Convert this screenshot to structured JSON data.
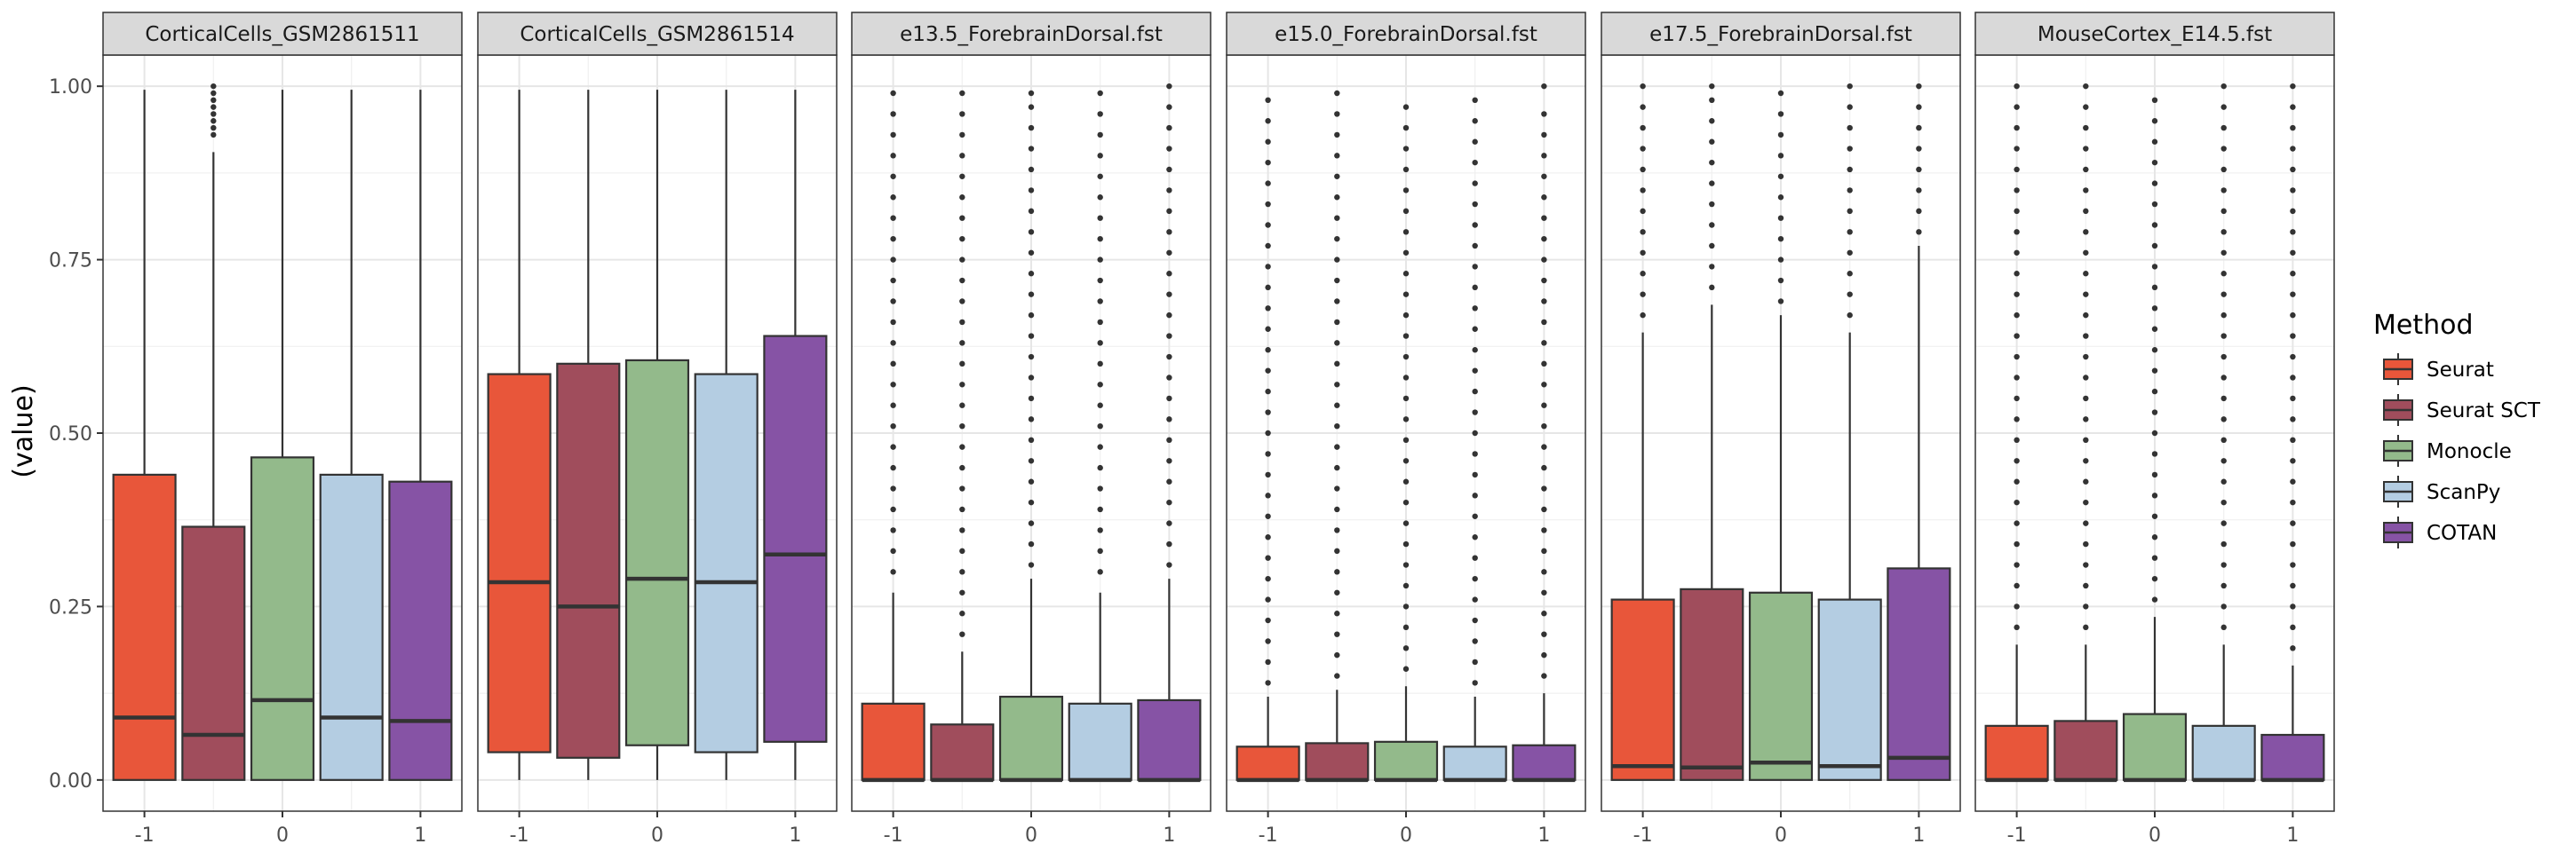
{
  "chart_data": {
    "type": "box",
    "ylabel": "(value)",
    "ylim": [
      -0.045,
      1.045
    ],
    "yticks": [
      0.0,
      0.25,
      0.5,
      0.75,
      1.0
    ],
    "ytick_labels": [
      "0.00",
      "0.25",
      "0.50",
      "0.75",
      "1.00"
    ],
    "x_categories": [
      -1,
      -0.5,
      0,
      0.5,
      1
    ],
    "xticks": [
      -1,
      0,
      1
    ],
    "xtick_labels": [
      "-1",
      "0",
      "1"
    ],
    "grid": true,
    "legend": {
      "title": "Method",
      "position": "right",
      "entries": [
        {
          "name": "Seurat",
          "color": "#E8563A"
        },
        {
          "name": "Seurat SCT",
          "color": "#A04D5C"
        },
        {
          "name": "Monocle",
          "color": "#93BA8B"
        },
        {
          "name": "ScanPy",
          "color": "#B4CDE2"
        },
        {
          "name": "COTAN",
          "color": "#8653A5"
        }
      ]
    },
    "panels": [
      {
        "title": "CorticalCells_GSM2861511",
        "boxes": [
          {
            "method": "Seurat",
            "x": -1,
            "q1": 0.0,
            "median": 0.09,
            "q3": 0.44,
            "whisker_low": 0.0,
            "whisker_high": 0.995,
            "outliers": []
          },
          {
            "method": "Seurat SCT",
            "x": -0.5,
            "q1": 0.0,
            "median": 0.065,
            "q3": 0.365,
            "whisker_low": 0.0,
            "whisker_high": 0.905,
            "outliers": [
              0.93,
              0.94,
              0.95,
              0.96,
              0.97,
              0.98,
              0.99,
              1.0
            ]
          },
          {
            "method": "Monocle",
            "x": 0,
            "q1": 0.0,
            "median": 0.115,
            "q3": 0.465,
            "whisker_low": 0.0,
            "whisker_high": 0.995,
            "outliers": []
          },
          {
            "method": "ScanPy",
            "x": 0.5,
            "q1": 0.0,
            "median": 0.09,
            "q3": 0.44,
            "whisker_low": 0.0,
            "whisker_high": 0.995,
            "outliers": []
          },
          {
            "method": "COTAN",
            "x": 1,
            "q1": 0.0,
            "median": 0.085,
            "q3": 0.43,
            "whisker_low": 0.0,
            "whisker_high": 0.995,
            "outliers": []
          }
        ]
      },
      {
        "title": "CorticalCells_GSM2861514",
        "boxes": [
          {
            "method": "Seurat",
            "x": -1,
            "q1": 0.04,
            "median": 0.285,
            "q3": 0.585,
            "whisker_low": 0.0,
            "whisker_high": 0.995,
            "outliers": []
          },
          {
            "method": "Seurat SCT",
            "x": -0.5,
            "q1": 0.032,
            "median": 0.25,
            "q3": 0.6,
            "whisker_low": 0.0,
            "whisker_high": 0.995,
            "outliers": []
          },
          {
            "method": "Monocle",
            "x": 0,
            "q1": 0.05,
            "median": 0.29,
            "q3": 0.605,
            "whisker_low": 0.0,
            "whisker_high": 0.995,
            "outliers": []
          },
          {
            "method": "ScanPy",
            "x": 0.5,
            "q1": 0.04,
            "median": 0.285,
            "q3": 0.585,
            "whisker_low": 0.0,
            "whisker_high": 0.995,
            "outliers": []
          },
          {
            "method": "COTAN",
            "x": 1,
            "q1": 0.055,
            "median": 0.325,
            "q3": 0.64,
            "whisker_low": 0.0,
            "whisker_high": 0.995,
            "outliers": []
          }
        ]
      },
      {
        "title": "e13.5_ForebrainDorsal.fst",
        "boxes": [
          {
            "method": "Seurat",
            "x": -1,
            "q1": 0.0,
            "median": 0.0,
            "q3": 0.11,
            "whisker_low": 0.0,
            "whisker_high": 0.27,
            "outliers": [
              0.3,
              0.33,
              0.36,
              0.39,
              0.42,
              0.45,
              0.48,
              0.51,
              0.54,
              0.57,
              0.6,
              0.63,
              0.66,
              0.69,
              0.72,
              0.75,
              0.78,
              0.81,
              0.84,
              0.87,
              0.9,
              0.93,
              0.96,
              0.99
            ]
          },
          {
            "method": "Seurat SCT",
            "x": -0.5,
            "q1": 0.0,
            "median": 0.0,
            "q3": 0.08,
            "whisker_low": 0.0,
            "whisker_high": 0.185,
            "outliers": [
              0.21,
              0.24,
              0.27,
              0.3,
              0.33,
              0.36,
              0.39,
              0.42,
              0.45,
              0.48,
              0.51,
              0.54,
              0.57,
              0.6,
              0.63,
              0.66,
              0.69,
              0.72,
              0.75,
              0.78,
              0.81,
              0.84,
              0.87,
              0.9,
              0.93,
              0.96,
              0.99
            ]
          },
          {
            "method": "Monocle",
            "x": 0,
            "q1": 0.0,
            "median": 0.0,
            "q3": 0.12,
            "whisker_low": 0.0,
            "whisker_high": 0.29,
            "outliers": [
              0.31,
              0.34,
              0.37,
              0.4,
              0.43,
              0.46,
              0.49,
              0.52,
              0.55,
              0.58,
              0.61,
              0.64,
              0.67,
              0.7,
              0.73,
              0.76,
              0.79,
              0.82,
              0.85,
              0.88,
              0.91,
              0.94,
              0.97,
              0.99
            ]
          },
          {
            "method": "ScanPy",
            "x": 0.5,
            "q1": 0.0,
            "median": 0.0,
            "q3": 0.11,
            "whisker_low": 0.0,
            "whisker_high": 0.27,
            "outliers": [
              0.3,
              0.33,
              0.36,
              0.39,
              0.42,
              0.45,
              0.48,
              0.51,
              0.54,
              0.57,
              0.6,
              0.63,
              0.66,
              0.69,
              0.72,
              0.75,
              0.78,
              0.81,
              0.84,
              0.87,
              0.9,
              0.93,
              0.96,
              0.99
            ]
          },
          {
            "method": "COTAN",
            "x": 1,
            "q1": 0.0,
            "median": 0.0,
            "q3": 0.115,
            "whisker_low": 0.0,
            "whisker_high": 0.29,
            "outliers": [
              0.31,
              0.34,
              0.37,
              0.4,
              0.43,
              0.46,
              0.49,
              0.52,
              0.55,
              0.58,
              0.61,
              0.64,
              0.67,
              0.7,
              0.73,
              0.76,
              0.79,
              0.82,
              0.85,
              0.88,
              0.91,
              0.94,
              0.97,
              1.0
            ]
          }
        ]
      },
      {
        "title": "e15.0_ForebrainDorsal.fst",
        "boxes": [
          {
            "method": "Seurat",
            "x": -1,
            "q1": 0.0,
            "median": 0.0,
            "q3": 0.048,
            "whisker_low": 0.0,
            "whisker_high": 0.12,
            "outliers": [
              0.14,
              0.17,
              0.2,
              0.23,
              0.26,
              0.29,
              0.32,
              0.35,
              0.38,
              0.41,
              0.44,
              0.47,
              0.5,
              0.53,
              0.56,
              0.59,
              0.62,
              0.65,
              0.68,
              0.71,
              0.74,
              0.77,
              0.8,
              0.83,
              0.86,
              0.89,
              0.92,
              0.95,
              0.98
            ]
          },
          {
            "method": "Seurat SCT",
            "x": -0.5,
            "q1": 0.0,
            "median": 0.0,
            "q3": 0.053,
            "whisker_low": 0.0,
            "whisker_high": 0.13,
            "outliers": [
              0.15,
              0.18,
              0.21,
              0.24,
              0.27,
              0.3,
              0.33,
              0.36,
              0.39,
              0.42,
              0.45,
              0.48,
              0.51,
              0.54,
              0.57,
              0.6,
              0.63,
              0.66,
              0.69,
              0.72,
              0.75,
              0.78,
              0.81,
              0.84,
              0.87,
              0.9,
              0.93,
              0.96,
              0.99
            ]
          },
          {
            "method": "Monocle",
            "x": 0,
            "q1": 0.0,
            "median": 0.0,
            "q3": 0.055,
            "whisker_low": 0.0,
            "whisker_high": 0.135,
            "outliers": [
              0.16,
              0.19,
              0.22,
              0.25,
              0.28,
              0.31,
              0.34,
              0.37,
              0.4,
              0.43,
              0.46,
              0.49,
              0.52,
              0.55,
              0.58,
              0.61,
              0.64,
              0.67,
              0.7,
              0.73,
              0.76,
              0.79,
              0.82,
              0.85,
              0.88,
              0.91,
              0.94,
              0.97
            ]
          },
          {
            "method": "ScanPy",
            "x": 0.5,
            "q1": 0.0,
            "median": 0.0,
            "q3": 0.048,
            "whisker_low": 0.0,
            "whisker_high": 0.12,
            "outliers": [
              0.14,
              0.17,
              0.2,
              0.23,
              0.26,
              0.29,
              0.32,
              0.35,
              0.38,
              0.41,
              0.44,
              0.47,
              0.5,
              0.53,
              0.56,
              0.59,
              0.62,
              0.65,
              0.68,
              0.71,
              0.74,
              0.77,
              0.8,
              0.83,
              0.86,
              0.89,
              0.92,
              0.95,
              0.98
            ]
          },
          {
            "method": "COTAN",
            "x": 1,
            "q1": 0.0,
            "median": 0.0,
            "q3": 0.05,
            "whisker_low": 0.0,
            "whisker_high": 0.125,
            "outliers": [
              0.15,
              0.18,
              0.21,
              0.24,
              0.27,
              0.3,
              0.33,
              0.36,
              0.39,
              0.42,
              0.45,
              0.48,
              0.51,
              0.54,
              0.57,
              0.6,
              0.63,
              0.66,
              0.69,
              0.72,
              0.75,
              0.78,
              0.81,
              0.84,
              0.87,
              0.9,
              0.93,
              0.96,
              1.0
            ]
          }
        ]
      },
      {
        "title": "e17.5_ForebrainDorsal.fst",
        "boxes": [
          {
            "method": "Seurat",
            "x": -1,
            "q1": 0.0,
            "median": 0.02,
            "q3": 0.26,
            "whisker_low": 0.0,
            "whisker_high": 0.645,
            "outliers": [
              0.67,
              0.7,
              0.73,
              0.76,
              0.79,
              0.82,
              0.85,
              0.88,
              0.91,
              0.94,
              0.97,
              1.0
            ]
          },
          {
            "method": "Seurat SCT",
            "x": -0.5,
            "q1": 0.0,
            "median": 0.018,
            "q3": 0.275,
            "whisker_low": 0.0,
            "whisker_high": 0.685,
            "outliers": [
              0.71,
              0.74,
              0.77,
              0.8,
              0.83,
              0.86,
              0.89,
              0.92,
              0.95,
              0.98,
              1.0
            ]
          },
          {
            "method": "Monocle",
            "x": 0,
            "q1": 0.0,
            "median": 0.025,
            "q3": 0.27,
            "whisker_low": 0.0,
            "whisker_high": 0.67,
            "outliers": [
              0.69,
              0.72,
              0.75,
              0.78,
              0.81,
              0.84,
              0.87,
              0.9,
              0.93,
              0.96,
              0.99
            ]
          },
          {
            "method": "ScanPy",
            "x": 0.5,
            "q1": 0.0,
            "median": 0.02,
            "q3": 0.26,
            "whisker_low": 0.0,
            "whisker_high": 0.645,
            "outliers": [
              0.67,
              0.7,
              0.73,
              0.76,
              0.79,
              0.82,
              0.85,
              0.88,
              0.91,
              0.94,
              0.97,
              1.0
            ]
          },
          {
            "method": "COTAN",
            "x": 1,
            "q1": 0.0,
            "median": 0.032,
            "q3": 0.305,
            "whisker_low": 0.0,
            "whisker_high": 0.77,
            "outliers": [
              0.79,
              0.82,
              0.85,
              0.88,
              0.91,
              0.94,
              0.97,
              1.0
            ]
          }
        ]
      },
      {
        "title": "MouseCortex_E14.5.fst",
        "boxes": [
          {
            "method": "Seurat",
            "x": -1,
            "q1": 0.0,
            "median": 0.0,
            "q3": 0.078,
            "whisker_low": 0.0,
            "whisker_high": 0.195,
            "outliers": [
              0.22,
              0.25,
              0.28,
              0.31,
              0.34,
              0.37,
              0.4,
              0.43,
              0.46,
              0.49,
              0.52,
              0.55,
              0.58,
              0.61,
              0.64,
              0.67,
              0.7,
              0.73,
              0.76,
              0.79,
              0.82,
              0.85,
              0.88,
              0.91,
              0.94,
              0.97,
              1.0
            ]
          },
          {
            "method": "Seurat SCT",
            "x": -0.5,
            "q1": 0.0,
            "median": 0.0,
            "q3": 0.085,
            "whisker_low": 0.0,
            "whisker_high": 0.195,
            "outliers": [
              0.22,
              0.25,
              0.28,
              0.31,
              0.34,
              0.37,
              0.4,
              0.43,
              0.46,
              0.49,
              0.52,
              0.55,
              0.58,
              0.61,
              0.64,
              0.67,
              0.7,
              0.73,
              0.76,
              0.79,
              0.82,
              0.85,
              0.88,
              0.91,
              0.94,
              0.97,
              1.0
            ]
          },
          {
            "method": "Monocle",
            "x": 0,
            "q1": 0.0,
            "median": 0.0,
            "q3": 0.095,
            "whisker_low": 0.0,
            "whisker_high": 0.235,
            "outliers": [
              0.26,
              0.29,
              0.32,
              0.35,
              0.38,
              0.41,
              0.44,
              0.47,
              0.5,
              0.53,
              0.56,
              0.59,
              0.62,
              0.65,
              0.68,
              0.71,
              0.74,
              0.77,
              0.8,
              0.83,
              0.86,
              0.89,
              0.92,
              0.95,
              0.98
            ]
          },
          {
            "method": "ScanPy",
            "x": 0.5,
            "q1": 0.0,
            "median": 0.0,
            "q3": 0.078,
            "whisker_low": 0.0,
            "whisker_high": 0.195,
            "outliers": [
              0.22,
              0.25,
              0.28,
              0.31,
              0.34,
              0.37,
              0.4,
              0.43,
              0.46,
              0.49,
              0.52,
              0.55,
              0.58,
              0.61,
              0.64,
              0.67,
              0.7,
              0.73,
              0.76,
              0.79,
              0.82,
              0.85,
              0.88,
              0.91,
              0.94,
              0.97,
              1.0
            ]
          },
          {
            "method": "COTAN",
            "x": 1,
            "q1": 0.0,
            "median": 0.0,
            "q3": 0.065,
            "whisker_low": 0.0,
            "whisker_high": 0.165,
            "outliers": [
              0.19,
              0.22,
              0.25,
              0.28,
              0.31,
              0.34,
              0.37,
              0.4,
              0.43,
              0.46,
              0.49,
              0.52,
              0.55,
              0.58,
              0.61,
              0.64,
              0.67,
              0.7,
              0.73,
              0.76,
              0.79,
              0.82,
              0.85,
              0.88,
              0.91,
              0.94,
              0.97,
              1.0
            ]
          }
        ]
      }
    ]
  }
}
